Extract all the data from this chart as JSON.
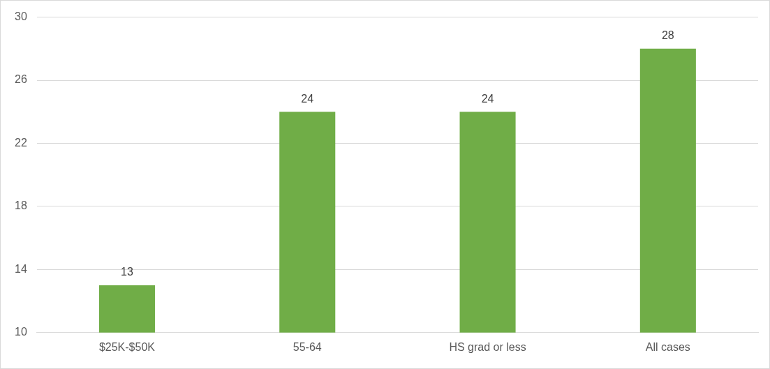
{
  "chart_data": {
    "type": "bar",
    "categories": [
      "$25K-$50K",
      "55-64",
      "HS grad or less",
      "All cases"
    ],
    "values": [
      13,
      24,
      24,
      28
    ],
    "color": "#70ad47",
    "ylim": [
      10,
      30
    ],
    "yticks": [
      10,
      14,
      18,
      22,
      26,
      30
    ],
    "grid": "y",
    "data_labels": true,
    "legend": false
  }
}
